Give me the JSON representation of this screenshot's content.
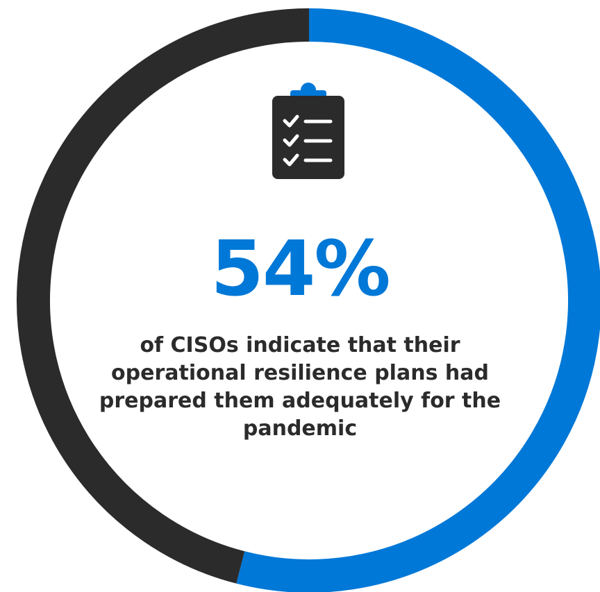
{
  "stat": {
    "value": "54%",
    "caption": "of CISOs indicate that their operational resilience plans had prepared them adequately for the pandemic"
  },
  "icon": "clipboard-checklist-icon",
  "colors": {
    "accent": "#0078d7",
    "remainder": "#2b2b2b",
    "background": "#ffffff"
  },
  "chart_data": {
    "type": "pie",
    "style": "donut",
    "slices": [
      {
        "label": "indicated prepared",
        "value": 54,
        "color": "#0078d7"
      },
      {
        "label": "remainder",
        "value": 46,
        "color": "#2b2b2b"
      }
    ],
    "start": "top",
    "direction": "clockwise"
  }
}
